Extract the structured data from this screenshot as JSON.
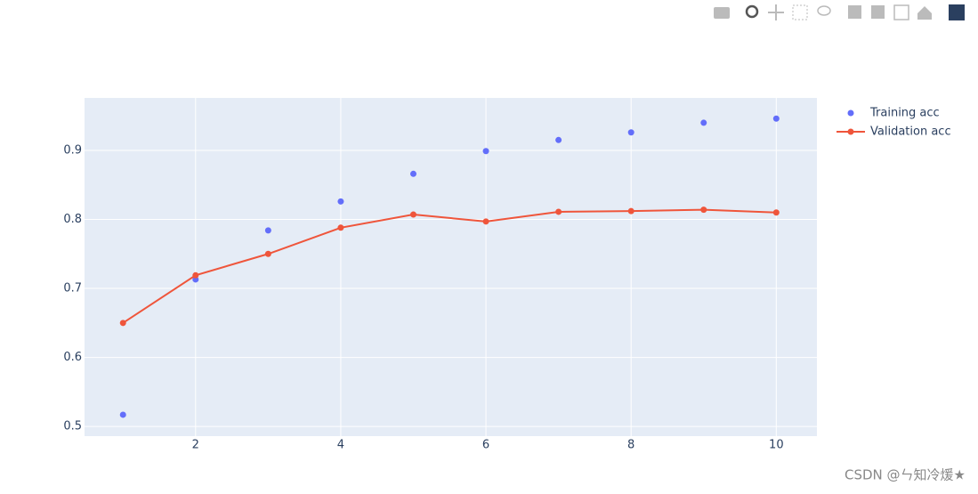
{
  "chart_data": {
    "type": "scatter",
    "x": [
      1,
      2,
      3,
      4,
      5,
      6,
      7,
      8,
      9,
      10
    ],
    "series": [
      {
        "name": "Training acc",
        "color": "#636efa",
        "mode": "markers",
        "values": [
          0.517,
          0.713,
          0.784,
          0.826,
          0.866,
          0.899,
          0.915,
          0.926,
          0.94,
          0.946
        ]
      },
      {
        "name": "Validation acc",
        "color": "#ef553b",
        "mode": "lines+markers",
        "values": [
          0.65,
          0.719,
          0.75,
          0.788,
          0.807,
          0.797,
          0.811,
          0.812,
          0.814,
          0.81
        ]
      }
    ],
    "xlim": [
      0.47,
      10.56
    ],
    "xticks": [
      2,
      4,
      6,
      8,
      10
    ],
    "ylim": [
      0.486,
      0.976
    ],
    "yticks": [
      0.5,
      0.6,
      0.7,
      0.8,
      0.9
    ],
    "grid": true,
    "legend_position": "right"
  },
  "watermark": "CSDN @ㄣ知冷煖★"
}
